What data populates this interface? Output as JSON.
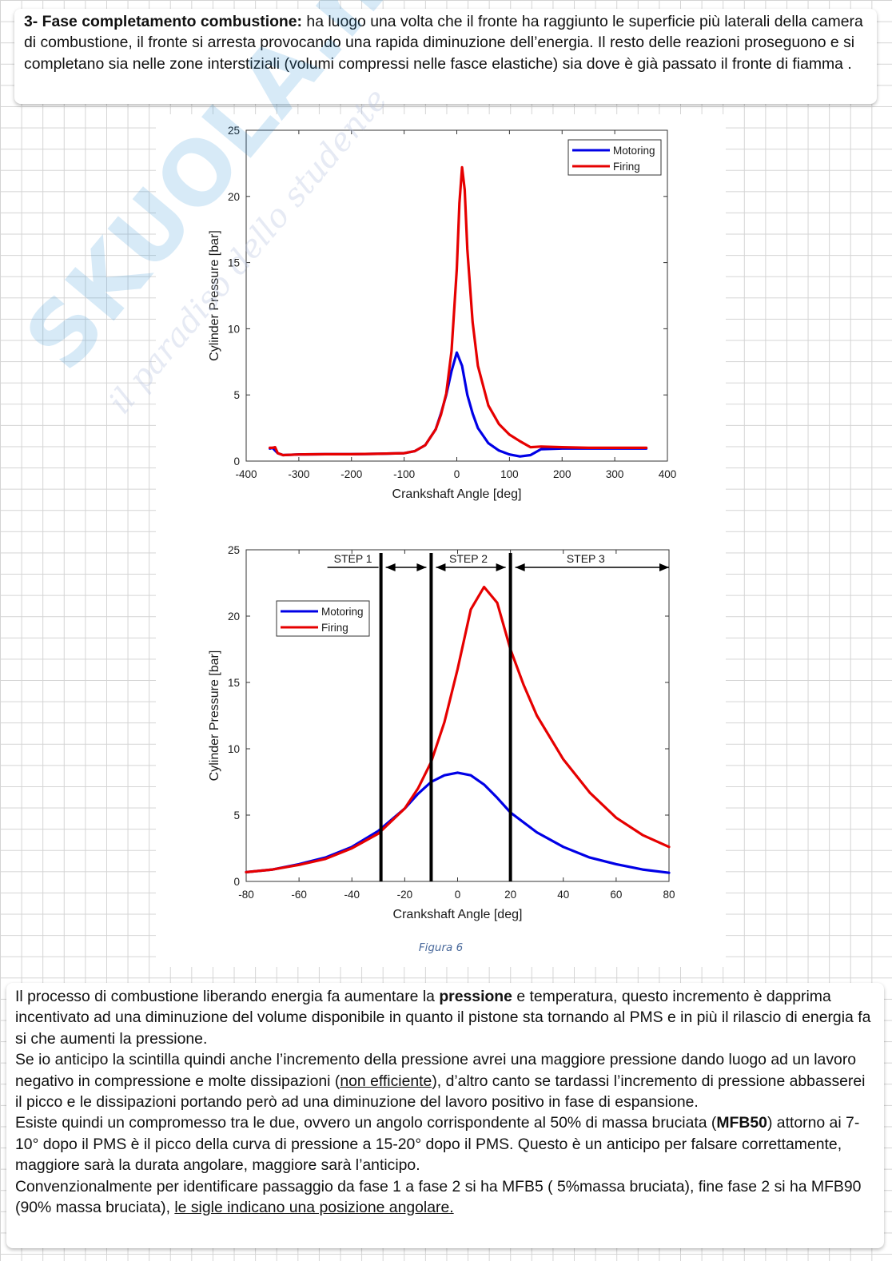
{
  "top_paragraph": {
    "heading": "3- Fase completamento combustione:",
    "text": " ha luogo una volta che il fronte ha raggiunto le superficie più laterali della camera di combustione, il fronte si arresta provocando una rapida diminuzione dell’energia. Il resto delle reazioni proseguono e si completano sia nelle zone interstiziali (volumi compressi nelle fasce elastiche) sia dove è già passato il fronte di fiamma ."
  },
  "watermark": {
    "brand": "SKUOLA.net",
    "tagline": "il paradiso dello studente"
  },
  "figure_caption": "Figura 6",
  "colors": {
    "motoring": "#0000e6",
    "firing": "#e60000"
  },
  "chart_data": [
    {
      "type": "line",
      "xlabel": "Crankshaft Angle [deg]",
      "ylabel": "Cylinder Pressure [bar]",
      "xlim": [
        -400,
        400
      ],
      "ylim": [
        0,
        25
      ],
      "xticks": [
        -400,
        -300,
        -200,
        -100,
        0,
        100,
        200,
        300,
        400
      ],
      "yticks": [
        0,
        5,
        10,
        15,
        20,
        25
      ],
      "legend": "top-right",
      "series": [
        {
          "name": "Motoring",
          "x": [
            -355,
            -350,
            -340,
            -330,
            -300,
            -250,
            -200,
            -150,
            -100,
            -80,
            -60,
            -40,
            -30,
            -20,
            -10,
            0,
            10,
            20,
            30,
            40,
            60,
            80,
            100,
            120,
            140,
            160,
            200,
            250,
            300,
            360
          ],
          "y": [
            0.95,
            1.0,
            0.6,
            0.45,
            0.5,
            0.52,
            0.52,
            0.55,
            0.6,
            0.75,
            1.2,
            2.4,
            3.6,
            5.0,
            6.8,
            8.2,
            7.2,
            5.0,
            3.6,
            2.5,
            1.35,
            0.8,
            0.5,
            0.35,
            0.45,
            0.9,
            0.95,
            0.95,
            0.95,
            0.95
          ]
        },
        {
          "name": "Firing",
          "x": [
            -355,
            -350,
            -345,
            -340,
            -330,
            -300,
            -250,
            -200,
            -150,
            -100,
            -80,
            -60,
            -40,
            -30,
            -20,
            -10,
            0,
            5,
            10,
            15,
            20,
            30,
            40,
            60,
            80,
            100,
            120,
            140,
            160,
            200,
            250,
            300,
            360
          ],
          "y": [
            1.0,
            1.0,
            1.05,
            0.6,
            0.45,
            0.5,
            0.52,
            0.52,
            0.55,
            0.6,
            0.75,
            1.2,
            2.4,
            3.5,
            5.1,
            8.3,
            14.5,
            19.5,
            22.2,
            20.5,
            16.0,
            10.5,
            7.2,
            4.2,
            2.8,
            2.0,
            1.5,
            1.05,
            1.1,
            1.05,
            1.0,
            1.0,
            1.0
          ]
        }
      ]
    },
    {
      "type": "line",
      "xlabel": "Crankshaft Angle [deg]",
      "ylabel": "Cylinder Pressure [bar]",
      "xlim": [
        -80,
        80
      ],
      "ylim": [
        0,
        25
      ],
      "xticks": [
        -80,
        -60,
        -40,
        -20,
        0,
        20,
        40,
        60,
        80
      ],
      "yticks": [
        0,
        5,
        10,
        15,
        20,
        25
      ],
      "legend": "top-left",
      "vlines": [
        -29,
        -10,
        20
      ],
      "steps": [
        {
          "label": "STEP 1",
          "x_start": -29,
          "x_end": -10
        },
        {
          "label": "STEP 2",
          "x_start": -10,
          "x_end": 20
        },
        {
          "label": "STEP 3",
          "x_start": 20,
          "x_end": 80
        }
      ],
      "series": [
        {
          "name": "Motoring",
          "x": [
            -80,
            -70,
            -60,
            -50,
            -40,
            -30,
            -20,
            -15,
            -10,
            -5,
            0,
            5,
            10,
            15,
            20,
            30,
            40,
            50,
            60,
            70,
            80
          ],
          "y": [
            0.7,
            0.9,
            1.3,
            1.8,
            2.6,
            3.8,
            5.5,
            6.6,
            7.5,
            8.0,
            8.2,
            8.0,
            7.3,
            6.3,
            5.2,
            3.7,
            2.6,
            1.8,
            1.3,
            0.9,
            0.65
          ]
        },
        {
          "name": "Firing",
          "x": [
            -80,
            -70,
            -60,
            -50,
            -40,
            -30,
            -20,
            -15,
            -10,
            -5,
            0,
            5,
            10,
            15,
            20,
            25,
            30,
            40,
            50,
            60,
            70,
            80
          ],
          "y": [
            0.7,
            0.9,
            1.25,
            1.7,
            2.5,
            3.6,
            5.5,
            7.0,
            9.0,
            12.0,
            16.0,
            20.5,
            22.2,
            21.0,
            17.5,
            14.8,
            12.5,
            9.2,
            6.7,
            4.8,
            3.5,
            2.6
          ]
        }
      ]
    }
  ],
  "bottom_paragraph": {
    "s1": "Il processo di combustione liberando energia fa aumentare la ",
    "s1_bold": "pressione",
    "s1_rest": " e temperatura, questo incremento è dapprima incentivato ad una diminuzione del volume disponibile in quanto il pistone sta tornando al PMS e in più il rilascio di energia fa si che aumenti la pressione.",
    "s2": "Se io anticipo la scintilla quindi anche l’incremento della pressione avrei una maggiore pressione dando luogo ad un lavoro negativo in compressione e molte dissipazioni (",
    "s2_underline": "non efficiente",
    "s2_rest": "), d’altro canto se tardassi l’incremento di pressione abbasserei il picco e le dissipazioni portando però ad una diminuzione del lavoro positivo in fase di espansione.",
    "s3": "Esiste quindi un compromesso tra le due, ovvero un angolo corrispondente al 50% di massa bruciata (",
    "s3_bold": "MFB50",
    "s3_rest": ") attorno ai 7-10° dopo il PMS è il picco della curva di pressione a 15-20° dopo il PMS. Questo è un anticipo per falsare correttamente, maggiore sarà la durata angolare, maggiore sarà l’anticipo.",
    "s4": "Convenzionalmente per identificare passaggio da fase 1 a fase 2 si ha MFB5 ( 5%massa bruciata), fine fase 2 si ha MFB90 (90% massa bruciata), ",
    "s4_underline": "le sigle indicano una posizione angolare."
  }
}
